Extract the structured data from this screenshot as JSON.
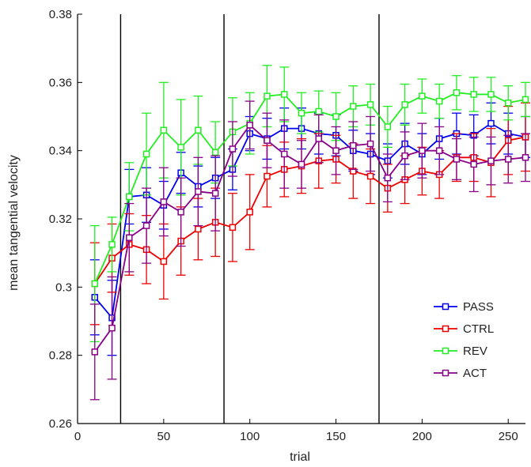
{
  "chart_data": {
    "type": "line",
    "title": "",
    "xlabel": "trial",
    "ylabel": "mean tangential velocity",
    "xlim": [
      0,
      260
    ],
    "ylim": [
      0.26,
      0.38
    ],
    "xticks": [
      0,
      50,
      100,
      150,
      200,
      250
    ],
    "xtick_labels": [
      "0",
      "50",
      "100",
      "150",
      "200",
      "250"
    ],
    "yticks": [
      0.26,
      0.28,
      0.3,
      0.32,
      0.34,
      0.36,
      0.38
    ],
    "ytick_labels": [
      "0.26",
      "0.28",
      "0.3",
      "0.32",
      "0.34",
      "0.36",
      "0.38"
    ],
    "vlines": [
      25,
      85,
      175
    ],
    "grid": false,
    "legend_position": "bottom-right",
    "series": [
      {
        "name": "PASS",
        "color": "#0000ee",
        "x": [
          10,
          20,
          30,
          40,
          50,
          60,
          70,
          80,
          90,
          100,
          110,
          120,
          130,
          140,
          150,
          160,
          170,
          180,
          190,
          200,
          210,
          220,
          230,
          240,
          250,
          260
        ],
        "y": [
          0.297,
          0.291,
          0.3265,
          0.327,
          0.324,
          0.3335,
          0.3295,
          0.332,
          0.3345,
          0.345,
          0.3435,
          0.3465,
          0.3465,
          0.345,
          0.3445,
          0.34,
          0.339,
          0.337,
          0.342,
          0.339,
          0.3435,
          0.345,
          0.3445,
          0.348,
          0.345,
          0.344
        ],
        "err": [
          0.011,
          0.011,
          0.008,
          0.008,
          0.007,
          0.006,
          0.006,
          0.006,
          0.006,
          0.005,
          0.006,
          0.006,
          0.006,
          0.006,
          0.006,
          0.006,
          0.006,
          0.005,
          0.006,
          0.006,
          0.006,
          0.006,
          0.006,
          0.006,
          0.006,
          0.006
        ]
      },
      {
        "name": "CTRL",
        "color": "#ee0000",
        "x": [
          10,
          20,
          30,
          40,
          50,
          60,
          70,
          80,
          90,
          100,
          110,
          120,
          130,
          140,
          150,
          160,
          170,
          180,
          190,
          200,
          210,
          220,
          230,
          240,
          250,
          260
        ],
        "y": [
          0.301,
          0.3085,
          0.3125,
          0.311,
          0.3075,
          0.3135,
          0.317,
          0.319,
          0.3175,
          0.322,
          0.3325,
          0.3345,
          0.3355,
          0.337,
          0.3375,
          0.334,
          0.3325,
          0.329,
          0.3315,
          0.334,
          0.333,
          0.338,
          0.338,
          0.3365,
          0.343,
          0.344
        ],
        "err": [
          0.012,
          0.01,
          0.009,
          0.01,
          0.011,
          0.01,
          0.009,
          0.01,
          0.01,
          0.011,
          0.009,
          0.008,
          0.008,
          0.008,
          0.007,
          0.008,
          0.008,
          0.007,
          0.007,
          0.007,
          0.007,
          0.007,
          0.007,
          0.01,
          0.01,
          0.01
        ]
      },
      {
        "name": "REV",
        "color": "#22ee22",
        "x": [
          10,
          20,
          30,
          40,
          50,
          60,
          70,
          80,
          90,
          100,
          110,
          120,
          130,
          140,
          150,
          160,
          170,
          180,
          190,
          200,
          210,
          220,
          230,
          240,
          250,
          260
        ],
        "y": [
          0.301,
          0.3125,
          0.3265,
          0.339,
          0.346,
          0.341,
          0.346,
          0.3395,
          0.3455,
          0.348,
          0.356,
          0.3565,
          0.351,
          0.3515,
          0.35,
          0.353,
          0.3535,
          0.347,
          0.3535,
          0.356,
          0.3545,
          0.357,
          0.3565,
          0.3565,
          0.354,
          0.355
        ],
        "err": [
          0.017,
          0.008,
          0.01,
          0.012,
          0.014,
          0.014,
          0.01,
          0.009,
          0.01,
          0.009,
          0.009,
          0.008,
          0.006,
          0.006,
          0.007,
          0.006,
          0.006,
          0.006,
          0.006,
          0.005,
          0.005,
          0.005,
          0.005,
          0.005,
          0.005,
          0.005
        ]
      },
      {
        "name": "ACT",
        "color": "#880088",
        "x": [
          10,
          20,
          30,
          40,
          50,
          60,
          70,
          80,
          90,
          100,
          110,
          120,
          130,
          140,
          150,
          160,
          170,
          180,
          190,
          200,
          210,
          220,
          230,
          240,
          250,
          260
        ],
        "y": [
          0.281,
          0.288,
          0.3145,
          0.318,
          0.325,
          0.322,
          0.328,
          0.3275,
          0.3405,
          0.3475,
          0.343,
          0.339,
          0.336,
          0.3435,
          0.34,
          0.3415,
          0.342,
          0.332,
          0.3385,
          0.34,
          0.34,
          0.3375,
          0.336,
          0.337,
          0.3375,
          0.338
        ],
        "err": [
          0.014,
          0.015,
          0.01,
          0.011,
          0.01,
          0.01,
          0.01,
          0.011,
          0.008,
          0.007,
          0.008,
          0.01,
          0.007,
          0.007,
          0.007,
          0.007,
          0.008,
          0.007,
          0.007,
          0.008,
          0.007,
          0.006,
          0.008,
          0.007,
          0.007,
          0.007
        ]
      }
    ]
  }
}
